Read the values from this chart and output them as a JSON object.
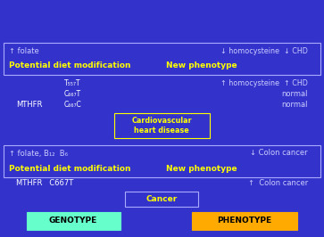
{
  "bg_color": "#3333CC",
  "genotype_box_color": "#66FFCC",
  "phenotype_box_color": "#FFAA00",
  "cancer_box_edge": "#AAAAFF",
  "cardio_box_edge": "#FFFF00",
  "diet_box_edge": "#AAAAFF",
  "white_text": "#FFFFFF",
  "yellow_text": "#FFFF00",
  "black_text": "#000000",
  "light_text": "#CCCCFF",
  "genotype_label": "GENOTYPE",
  "phenotype_label": "PHENOTYPE",
  "cancer_label": "Cancer",
  "cardio_label": "Cardiovascular\nheart disease",
  "mthfr_cancer": "MTHFR   C667T",
  "colon_cancer": "↑  Colon cancer",
  "diet_mod_1": "Potential diet modification",
  "new_pheno_1": "New phenotype",
  "folate_b": "↑ folate, B₁₂  B₆",
  "colon_down": "↓ Colon cancer",
  "mthfr_cvd_1": "MTHFR",
  "c667c": "C₆₆₇C",
  "c667t": "C₆₆₇T",
  "t557t": "T₅₅₇T",
  "normal_1": "normal",
  "normal_2": "normal",
  "homo_up_chd": "↑ homocysteine  ↑ CHD",
  "diet_mod_2": "Potential diet modification",
  "new_pheno_2": "New phenotype",
  "folate_2": "↑ folate",
  "homo_down_chd": "↓ homocysteine  ↓ CHD"
}
